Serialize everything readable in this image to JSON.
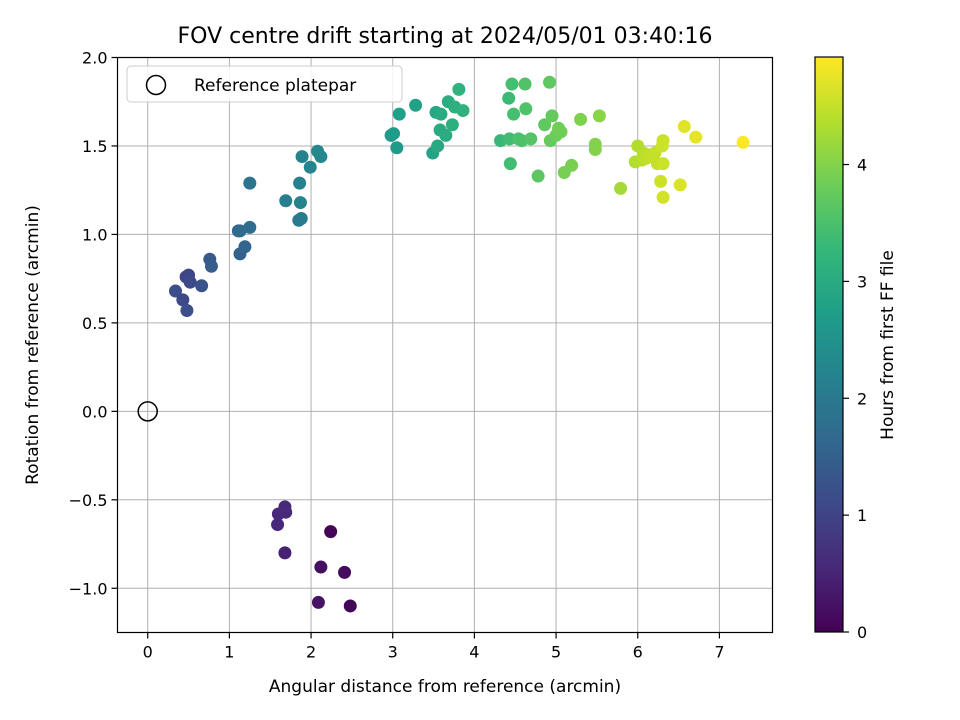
{
  "chart_data": {
    "type": "scatter",
    "title": "FOV centre drift starting at 2024/05/01 03:40:16",
    "xlabel": "Angular distance from reference (arcmin)",
    "ylabel": "Rotation from reference (arcmin)",
    "xlim": [
      -0.37,
      7.65
    ],
    "ylim": [
      -1.25,
      2.0
    ],
    "xticks": [
      0,
      1,
      2,
      3,
      4,
      5,
      6,
      7
    ],
    "yticks": [
      -1.0,
      -0.5,
      0.0,
      0.5,
      1.0,
      1.5,
      2.0
    ],
    "xtick_labels": [
      "0",
      "1",
      "2",
      "3",
      "4",
      "5",
      "6",
      "7"
    ],
    "ytick_labels": [
      "−1.0",
      "−0.5",
      "0.0",
      "0.5",
      "1.0",
      "1.5",
      "2.0"
    ],
    "grid": true,
    "legend": {
      "placement": "upper-left",
      "label": "Reference platepar"
    },
    "reference_point": {
      "x": 0,
      "y": 0
    },
    "colorbar": {
      "label": "Hours from first FF file",
      "colormap": "viridis",
      "range": [
        0,
        4.92
      ],
      "ticks": [
        0,
        1,
        2,
        3,
        4
      ],
      "tick_labels": [
        "0",
        "1",
        "2",
        "3",
        "4"
      ]
    },
    "points": [
      {
        "x": 1.6,
        "y": -0.58,
        "c": 0.55
      },
      {
        "x": 1.68,
        "y": -0.54,
        "c": 0.56
      },
      {
        "x": 1.69,
        "y": -0.57,
        "c": 0.58
      },
      {
        "x": 1.59,
        "y": -0.64,
        "c": 0.57
      },
      {
        "x": 1.68,
        "y": -0.8,
        "c": 0.45
      },
      {
        "x": 2.24,
        "y": -0.68,
        "c": 0.05
      },
      {
        "x": 2.12,
        "y": -0.88,
        "c": 0.2
      },
      {
        "x": 2.41,
        "y": -0.91,
        "c": 0.15
      },
      {
        "x": 2.09,
        "y": -1.08,
        "c": 0.25
      },
      {
        "x": 2.48,
        "y": -1.1,
        "c": 0.06
      },
      {
        "x": 0.34,
        "y": 0.68,
        "c": 1.2
      },
      {
        "x": 0.43,
        "y": 0.63,
        "c": 1.1
      },
      {
        "x": 0.48,
        "y": 0.57,
        "c": 1.2
      },
      {
        "x": 0.47,
        "y": 0.76,
        "c": 1.0
      },
      {
        "x": 0.5,
        "y": 0.77,
        "c": 1.05
      },
      {
        "x": 0.52,
        "y": 0.73,
        "c": 1.1
      },
      {
        "x": 0.66,
        "y": 0.71,
        "c": 1.25
      },
      {
        "x": 0.76,
        "y": 0.86,
        "c": 1.4
      },
      {
        "x": 0.78,
        "y": 0.82,
        "c": 1.45
      },
      {
        "x": 1.11,
        "y": 1.02,
        "c": 1.65
      },
      {
        "x": 1.13,
        "y": 1.02,
        "c": 1.7
      },
      {
        "x": 1.13,
        "y": 0.89,
        "c": 1.55
      },
      {
        "x": 1.19,
        "y": 0.93,
        "c": 1.6
      },
      {
        "x": 1.25,
        "y": 1.04,
        "c": 1.75
      },
      {
        "x": 1.25,
        "y": 1.29,
        "c": 1.9
      },
      {
        "x": 1.69,
        "y": 1.19,
        "c": 2.1
      },
      {
        "x": 1.85,
        "y": 1.08,
        "c": 2.0
      },
      {
        "x": 1.88,
        "y": 1.09,
        "c": 2.05
      },
      {
        "x": 1.86,
        "y": 1.29,
        "c": 2.15
      },
      {
        "x": 1.87,
        "y": 1.18,
        "c": 2.2
      },
      {
        "x": 1.89,
        "y": 1.44,
        "c": 2.2
      },
      {
        "x": 1.99,
        "y": 1.38,
        "c": 2.25
      },
      {
        "x": 2.08,
        "y": 1.47,
        "c": 2.3
      },
      {
        "x": 2.12,
        "y": 1.44,
        "c": 2.3
      },
      {
        "x": 2.98,
        "y": 1.56,
        "c": 2.65
      },
      {
        "x": 3.01,
        "y": 1.57,
        "c": 2.7
      },
      {
        "x": 3.05,
        "y": 1.49,
        "c": 2.7
      },
      {
        "x": 3.08,
        "y": 1.68,
        "c": 2.75
      },
      {
        "x": 3.28,
        "y": 1.73,
        "c": 2.8
      },
      {
        "x": 3.49,
        "y": 1.46,
        "c": 2.85
      },
      {
        "x": 3.53,
        "y": 1.69,
        "c": 2.9
      },
      {
        "x": 3.55,
        "y": 1.5,
        "c": 2.95
      },
      {
        "x": 3.58,
        "y": 1.59,
        "c": 3.0
      },
      {
        "x": 3.59,
        "y": 1.68,
        "c": 3.0
      },
      {
        "x": 3.65,
        "y": 1.56,
        "c": 3.05
      },
      {
        "x": 3.68,
        "y": 1.75,
        "c": 3.05
      },
      {
        "x": 3.73,
        "y": 1.62,
        "c": 3.1
      },
      {
        "x": 3.76,
        "y": 1.72,
        "c": 3.1
      },
      {
        "x": 3.81,
        "y": 1.82,
        "c": 3.15
      },
      {
        "x": 3.86,
        "y": 1.7,
        "c": 3.15
      },
      {
        "x": 4.32,
        "y": 1.53,
        "c": 3.3
      },
      {
        "x": 4.42,
        "y": 1.77,
        "c": 3.35
      },
      {
        "x": 4.43,
        "y": 1.54,
        "c": 3.4
      },
      {
        "x": 4.44,
        "y": 1.4,
        "c": 3.4
      },
      {
        "x": 4.46,
        "y": 1.85,
        "c": 3.45
      },
      {
        "x": 4.48,
        "y": 1.68,
        "c": 3.45
      },
      {
        "x": 4.54,
        "y": 1.54,
        "c": 3.5
      },
      {
        "x": 4.58,
        "y": 1.53,
        "c": 3.5
      },
      {
        "x": 4.62,
        "y": 1.85,
        "c": 3.55
      },
      {
        "x": 4.63,
        "y": 1.71,
        "c": 3.55
      },
      {
        "x": 4.69,
        "y": 1.54,
        "c": 3.6
      },
      {
        "x": 4.78,
        "y": 1.33,
        "c": 3.65
      },
      {
        "x": 4.86,
        "y": 1.62,
        "c": 3.7
      },
      {
        "x": 4.92,
        "y": 1.86,
        "c": 3.7
      },
      {
        "x": 4.93,
        "y": 1.53,
        "c": 3.75
      },
      {
        "x": 4.95,
        "y": 1.67,
        "c": 3.75
      },
      {
        "x": 5.0,
        "y": 1.56,
        "c": 3.8
      },
      {
        "x": 5.03,
        "y": 1.6,
        "c": 3.85
      },
      {
        "x": 5.06,
        "y": 1.58,
        "c": 3.85
      },
      {
        "x": 5.1,
        "y": 1.35,
        "c": 3.9
      },
      {
        "x": 5.19,
        "y": 1.39,
        "c": 3.9
      },
      {
        "x": 5.3,
        "y": 1.65,
        "c": 3.95
      },
      {
        "x": 5.48,
        "y": 1.48,
        "c": 4.0
      },
      {
        "x": 5.48,
        "y": 1.51,
        "c": 4.0
      },
      {
        "x": 5.53,
        "y": 1.67,
        "c": 4.05
      },
      {
        "x": 5.79,
        "y": 1.26,
        "c": 4.25
      },
      {
        "x": 5.97,
        "y": 1.41,
        "c": 4.35
      },
      {
        "x": 6.0,
        "y": 1.5,
        "c": 4.35
      },
      {
        "x": 6.05,
        "y": 1.42,
        "c": 4.4
      },
      {
        "x": 6.07,
        "y": 1.46,
        "c": 4.4
      },
      {
        "x": 6.1,
        "y": 1.43,
        "c": 4.45
      },
      {
        "x": 6.13,
        "y": 1.45,
        "c": 4.45
      },
      {
        "x": 6.18,
        "y": 1.44,
        "c": 4.5
      },
      {
        "x": 6.21,
        "y": 1.46,
        "c": 4.5
      },
      {
        "x": 6.24,
        "y": 1.4,
        "c": 4.5
      },
      {
        "x": 6.28,
        "y": 1.3,
        "c": 4.55
      },
      {
        "x": 6.3,
        "y": 1.5,
        "c": 4.55
      },
      {
        "x": 6.31,
        "y": 1.53,
        "c": 4.55
      },
      {
        "x": 6.31,
        "y": 1.4,
        "c": 4.55
      },
      {
        "x": 6.31,
        "y": 1.21,
        "c": 4.6
      },
      {
        "x": 6.52,
        "y": 1.28,
        "c": 4.65
      },
      {
        "x": 6.57,
        "y": 1.61,
        "c": 4.7
      },
      {
        "x": 6.71,
        "y": 1.55,
        "c": 4.75
      },
      {
        "x": 7.29,
        "y": 1.52,
        "c": 4.9
      }
    ]
  }
}
